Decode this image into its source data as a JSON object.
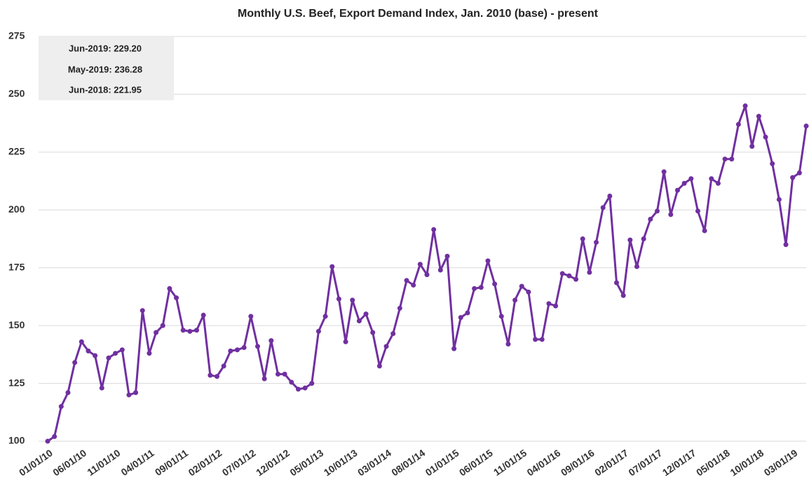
{
  "chart_data": {
    "type": "line",
    "title": "Monthly U.S. Beef, Export Demand Index, Jan. 2010 (base) - present",
    "annotations": [
      "Jun-2019: 229.20",
      "May-2019: 236.28",
      "Jun-2018: 221.95"
    ],
    "categories": [
      "01/01/10",
      null,
      null,
      null,
      null,
      "06/01/10",
      null,
      null,
      null,
      null,
      "11/01/10",
      null,
      null,
      null,
      null,
      "04/01/11",
      null,
      null,
      null,
      null,
      "09/01/11",
      null,
      null,
      null,
      null,
      "02/01/12",
      null,
      null,
      null,
      null,
      "07/01/12",
      null,
      null,
      null,
      null,
      "12/01/12",
      null,
      null,
      null,
      null,
      "05/01/13",
      null,
      null,
      null,
      null,
      "10/01/13",
      null,
      null,
      null,
      null,
      "03/01/14",
      null,
      null,
      null,
      null,
      "08/01/14",
      null,
      null,
      null,
      null,
      "01/01/15",
      null,
      null,
      null,
      null,
      "06/01/15",
      null,
      null,
      null,
      null,
      "11/01/15",
      null,
      null,
      null,
      null,
      "04/01/16",
      null,
      null,
      null,
      null,
      "09/01/16",
      null,
      null,
      null,
      null,
      "02/01/17",
      null,
      null,
      null,
      null,
      "07/01/17",
      null,
      null,
      null,
      null,
      "12/01/17",
      null,
      null,
      null,
      null,
      "05/01/18",
      null,
      null,
      null,
      null,
      "10/01/18",
      null,
      null,
      null,
      null,
      "03/01/19",
      null,
      null
    ],
    "series": [
      {
        "name": "Export Demand Index",
        "color": "#7030a0",
        "values": [
          100,
          102,
          115,
          121,
          134,
          143,
          139,
          137,
          123,
          136,
          138,
          139.5,
          120,
          121,
          156.5,
          138,
          147,
          150,
          166,
          162,
          148,
          147.5,
          148,
          154.5,
          128.5,
          128,
          132.5,
          139,
          139.5,
          140.5,
          154,
          141,
          127,
          143.5,
          129,
          129,
          125.5,
          122.5,
          123,
          125,
          147.5,
          154,
          175.5,
          161.5,
          143,
          161,
          152,
          155,
          147,
          132.5,
          141,
          146.5,
          157.5,
          169.5,
          167.5,
          176.5,
          172,
          191.5,
          174,
          180,
          140,
          153.5,
          155.5,
          166,
          166.5,
          178,
          168,
          154,
          142,
          161,
          167,
          164.5,
          144,
          144,
          159.5,
          158.5,
          172.5,
          171.5,
          170,
          187.5,
          173,
          186,
          201,
          206,
          168.5,
          163,
          187,
          175.5,
          187.5,
          196,
          199.5,
          216.5,
          198,
          208.5,
          211.5,
          213.5,
          199.5,
          191,
          213.5,
          211.5,
          222,
          222,
          237,
          245,
          227.5,
          240.5,
          231.5,
          220,
          204.5,
          185,
          214,
          216,
          236.28
        ]
      }
    ],
    "ylim": [
      100,
      275
    ],
    "yticks": [
      100,
      125,
      150,
      175,
      200,
      225,
      250,
      275
    ],
    "grid": true
  }
}
